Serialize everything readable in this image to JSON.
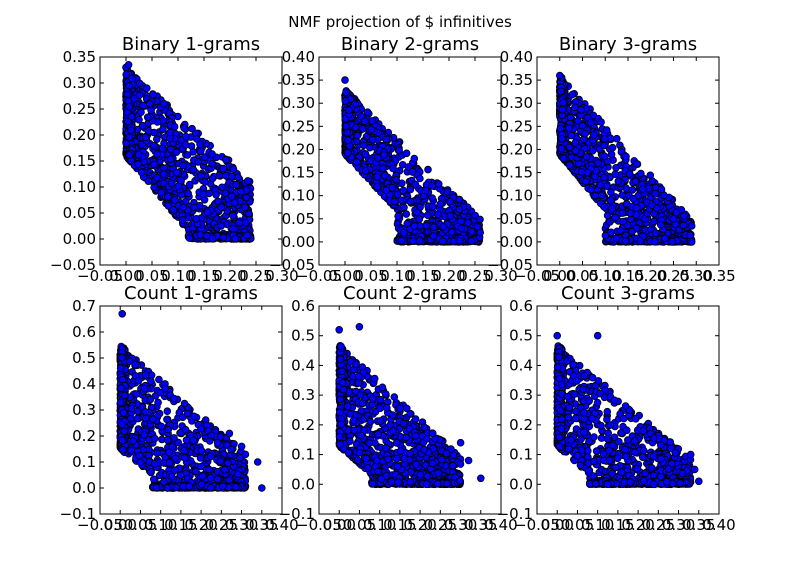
{
  "figure": {
    "suptitle": "NMF projection of $ infinitives"
  },
  "colors": {
    "marker_fill": "#0000ff",
    "marker_edge": "#000000"
  },
  "chart_data": [
    {
      "type": "scatter",
      "title": "Binary 1-grams",
      "xlim": [
        -0.05,
        0.3
      ],
      "ylim": [
        -0.05,
        0.35
      ],
      "xticks": [
        "−0.05",
        "0.00",
        "0.05",
        "0.10",
        "0.15",
        "0.20",
        "0.25",
        "0.30"
      ],
      "yticks": [
        "−0.05",
        "0.00",
        "0.05",
        "0.10",
        "0.15",
        "0.20",
        "0.25",
        "0.30",
        "0.35"
      ],
      "xtick_values": [
        -0.05,
        0.0,
        0.05,
        0.1,
        0.15,
        0.2,
        0.25,
        0.3
      ],
      "ytick_values": [
        -0.05,
        0.0,
        0.05,
        0.1,
        0.15,
        0.2,
        0.25,
        0.3,
        0.35
      ],
      "point_cloud": {
        "x_axis_min": 0.0,
        "x_max": 0.24,
        "y_at_x0_max": 0.33,
        "y_at_x0_min": 0.16,
        "slope_top": -1.0,
        "dense_x_cut": 0.12,
        "outliers": [
          [
            0.04,
            0.29
          ],
          [
            0.0,
            0.33
          ],
          [
            0.005,
            0.335
          ]
        ]
      }
    },
    {
      "type": "scatter",
      "title": "Binary 2-grams",
      "xlim": [
        -0.05,
        0.3
      ],
      "ylim": [
        -0.05,
        0.4
      ],
      "xticks": [
        "−0.05",
        "0.00",
        "0.05",
        "0.10",
        "0.15",
        "0.20",
        "0.25",
        "0.30"
      ],
      "yticks": [
        "−0.05",
        "0.00",
        "0.05",
        "0.10",
        "0.15",
        "0.20",
        "0.25",
        "0.30",
        "0.35",
        "0.40"
      ],
      "xtick_values": [
        -0.05,
        0.0,
        0.05,
        0.1,
        0.15,
        0.2,
        0.25,
        0.3
      ],
      "ytick_values": [
        -0.05,
        0.0,
        0.05,
        0.1,
        0.15,
        0.2,
        0.25,
        0.3,
        0.35,
        0.4
      ],
      "point_cloud": {
        "x_axis_min": 0.0,
        "x_max": 0.26,
        "y_at_x0_max": 0.33,
        "y_at_x0_min": 0.19,
        "slope_top": -1.2,
        "dense_x_cut": 0.1,
        "outliers": [
          [
            0.0,
            0.35
          ],
          [
            0.26,
            0.02
          ],
          [
            0.22,
            0.07
          ]
        ]
      }
    },
    {
      "type": "scatter",
      "title": "Binary 3-grams",
      "xlim": [
        -0.05,
        0.35
      ],
      "ylim": [
        -0.05,
        0.4
      ],
      "xticks": [
        "−0.05",
        "0.00",
        "0.05",
        "0.10",
        "0.15",
        "0.20",
        "0.25",
        "0.30",
        "0.35"
      ],
      "yticks": [
        "−0.05",
        "0.00",
        "0.05",
        "0.10",
        "0.15",
        "0.20",
        "0.25",
        "0.30",
        "0.35",
        "0.40"
      ],
      "xtick_values": [
        -0.05,
        0.0,
        0.05,
        0.1,
        0.15,
        0.2,
        0.25,
        0.3,
        0.35
      ],
      "ytick_values": [
        -0.05,
        0.0,
        0.05,
        0.1,
        0.15,
        0.2,
        0.25,
        0.3,
        0.35,
        0.4
      ],
      "point_cloud": {
        "x_axis_min": 0.0,
        "x_max": 0.29,
        "y_at_x0_max": 0.36,
        "y_at_x0_min": 0.19,
        "slope_top": -1.2,
        "dense_x_cut": 0.1,
        "outliers": [
          [
            0.0,
            0.36
          ],
          [
            0.29,
            0.0
          ],
          [
            0.25,
            0.05
          ]
        ]
      }
    },
    {
      "type": "scatter",
      "title": "Count 1-grams",
      "xlim": [
        -0.05,
        0.4
      ],
      "ylim": [
        -0.1,
        0.7
      ],
      "xticks": [
        "−0.05",
        "0.00",
        "0.05",
        "0.10",
        "0.15",
        "0.20",
        "0.25",
        "0.30",
        "0.35",
        "0.40"
      ],
      "yticks": [
        "−0.1",
        "0.0",
        "0.1",
        "0.2",
        "0.3",
        "0.4",
        "0.5",
        "0.6",
        "0.7"
      ],
      "xtick_values": [
        -0.05,
        0.0,
        0.05,
        0.1,
        0.15,
        0.2,
        0.25,
        0.3,
        0.35,
        0.4
      ],
      "ytick_values": [
        -0.1,
        0.0,
        0.1,
        0.2,
        0.3,
        0.4,
        0.5,
        0.6,
        0.7
      ],
      "point_cloud": {
        "x_axis_min": 0.0,
        "x_max": 0.31,
        "y_at_x0_max": 0.55,
        "y_at_x0_min": 0.15,
        "slope_top": -1.5,
        "dense_x_cut": 0.08,
        "outliers": [
          [
            0.005,
            0.67
          ],
          [
            0.34,
            0.1
          ],
          [
            0.35,
            0.0
          ],
          [
            0.3,
            0.16
          ],
          [
            0.27,
            0.21
          ]
        ]
      }
    },
    {
      "type": "scatter",
      "title": "Count 2-grams",
      "xlim": [
        -0.05,
        0.4
      ],
      "ylim": [
        -0.1,
        0.6
      ],
      "xticks": [
        "−0.05",
        "0.00",
        "0.05",
        "0.10",
        "0.15",
        "0.20",
        "0.25",
        "0.30",
        "0.35",
        "0.40"
      ],
      "yticks": [
        "−0.1",
        "0.0",
        "0.1",
        "0.2",
        "0.3",
        "0.4",
        "0.5",
        "0.6"
      ],
      "xtick_values": [
        -0.05,
        0.0,
        0.05,
        0.1,
        0.15,
        0.2,
        0.25,
        0.3,
        0.35,
        0.4
      ],
      "ytick_values": [
        -0.1,
        0.0,
        0.1,
        0.2,
        0.3,
        0.4,
        0.5,
        0.6
      ],
      "point_cloud": {
        "x_axis_min": 0.0,
        "x_max": 0.3,
        "y_at_x0_max": 0.47,
        "y_at_x0_min": 0.13,
        "slope_top": -1.4,
        "dense_x_cut": 0.08,
        "outliers": [
          [
            0.0,
            0.52
          ],
          [
            0.05,
            0.53
          ],
          [
            0.35,
            0.02
          ],
          [
            0.32,
            0.08
          ],
          [
            0.3,
            0.14
          ]
        ]
      }
    },
    {
      "type": "scatter",
      "title": "Count 3-grams",
      "xlim": [
        -0.05,
        0.4
      ],
      "ylim": [
        -0.1,
        0.6
      ],
      "xticks": [
        "−0.05",
        "0.00",
        "0.05",
        "0.10",
        "0.15",
        "0.20",
        "0.25",
        "0.30",
        "0.35",
        "0.40"
      ],
      "yticks": [
        "−0.1",
        "0.0",
        "0.1",
        "0.2",
        "0.3",
        "0.4",
        "0.5",
        "0.6"
      ],
      "xtick_values": [
        -0.05,
        0.0,
        0.05,
        0.1,
        0.15,
        0.2,
        0.25,
        0.3,
        0.35,
        0.4
      ],
      "ytick_values": [
        -0.1,
        0.0,
        0.1,
        0.2,
        0.3,
        0.4,
        0.5,
        0.6
      ],
      "point_cloud": {
        "x_axis_min": 0.0,
        "x_max": 0.33,
        "y_at_x0_max": 0.47,
        "y_at_x0_min": 0.13,
        "slope_top": -1.3,
        "dense_x_cut": 0.08,
        "outliers": [
          [
            0.0,
            0.5
          ],
          [
            0.1,
            0.5
          ],
          [
            0.35,
            0.01
          ],
          [
            0.34,
            0.05
          ],
          [
            0.33,
            0.1
          ]
        ]
      }
    }
  ]
}
